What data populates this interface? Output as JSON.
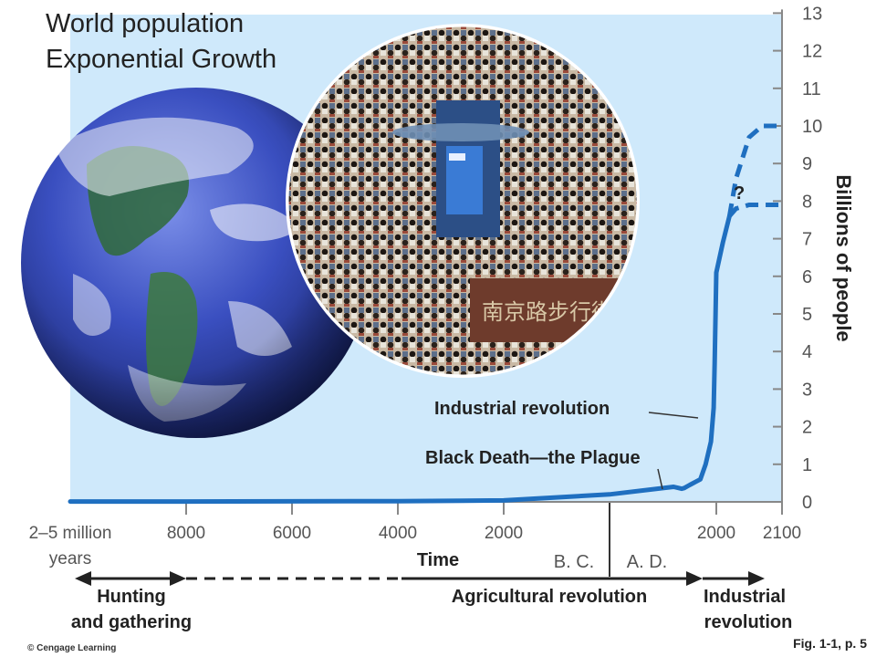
{
  "chart_data": {
    "type": "line",
    "title": [
      "World population",
      "Exponential  Growth"
    ],
    "ylabel": "Billions of people",
    "xlabel": "Time",
    "ylim": [
      0,
      13
    ],
    "yticks": [
      0,
      1,
      2,
      3,
      4,
      5,
      6,
      7,
      8,
      9,
      10,
      11,
      12,
      13
    ],
    "xtick_labels": [
      "2–5 million",
      "years",
      "8000",
      "6000",
      "4000",
      "2000",
      "2000",
      "2100"
    ],
    "eras": [
      "B. C.",
      "A. D."
    ],
    "x_scale": "piecewise (compressed before 8000 B.C.)",
    "grid": false,
    "series": [
      {
        "values": [
          [
            -3000000,
            0.01
          ],
          [
            -8000,
            0.01
          ],
          [
            -4000,
            0.02
          ],
          [
            -2000,
            0.04
          ],
          [
            0,
            0.2
          ],
          [
            1200,
            0.4
          ],
          [
            1350,
            0.35
          ],
          [
            1400,
            0.37
          ],
          [
            1500,
            0.45
          ],
          [
            1700,
            0.6
          ],
          [
            1800,
            1.0
          ],
          [
            1900,
            1.6
          ],
          [
            1950,
            2.5
          ],
          [
            1970,
            3.7
          ],
          [
            1990,
            5.3
          ],
          [
            2000,
            6.1
          ],
          [
            2010,
            6.9
          ],
          [
            2020,
            7.6
          ]
        ],
        "style": "solid"
      },
      {
        "values": [
          [
            2020,
            7.6
          ],
          [
            2030,
            8.6
          ],
          [
            2050,
            9.7
          ],
          [
            2070,
            10.0
          ],
          [
            2100,
            10.0
          ]
        ],
        "style": "dashed"
      },
      {
        "values": [
          [
            2020,
            7.6
          ],
          [
            2030,
            7.8
          ],
          [
            2050,
            7.9
          ],
          [
            2100,
            7.9
          ]
        ],
        "style": "dashed"
      }
    ],
    "uncertainty_mark": "?",
    "annotations": [
      "Industrial revolution",
      "Black Death—the Plague"
    ],
    "periods": [
      {
        "label": [
          "Hunting",
          "and gathering"
        ],
        "span": [
          -3000000,
          -8000
        ]
      },
      {
        "label": [
          "Agricultural revolution"
        ],
        "span": [
          -8000,
          1800
        ]
      },
      {
        "label": [
          "Industrial",
          "revolution"
        ],
        "span": [
          1800,
          2100
        ]
      }
    ]
  },
  "credit": "© Cengage Learning",
  "figure_ref": "Fig. 1-1, p. 5",
  "photos": {
    "crowd_sign": "南京路步行街"
  },
  "colors": {
    "background_panel": "#cfe9fb",
    "curve": "#1f6fc0",
    "axis": "#888888"
  }
}
